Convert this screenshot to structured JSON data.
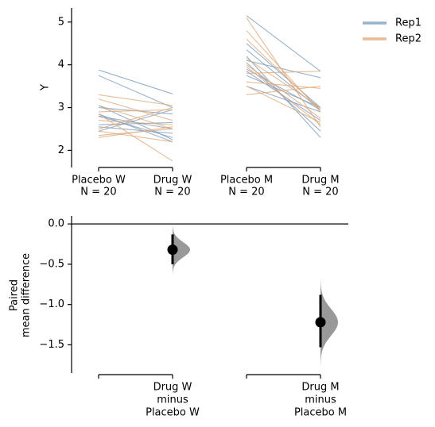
{
  "chart_data": [
    {
      "type": "slope",
      "ylabel": "Y",
      "categories": [
        [
          "Placebo W",
          "N = 20"
        ],
        [
          "Drug W",
          "N = 20"
        ],
        [
          "Placebo M",
          "N = 20"
        ],
        [
          "Drug M",
          "N = 20"
        ]
      ],
      "ylim": [
        1.6,
        5.33
      ],
      "yticks": [
        2,
        3,
        4,
        5
      ],
      "series": [
        {
          "name": "Rep1",
          "color": "#7f9fbf",
          "groups": [
            {
              "start": [
                3.88,
                3.75,
                3.05,
                2.85,
                2.8,
                2.6,
                2.55,
                2.45,
                2.8,
                3.0
              ],
              "end": [
                3.32,
                3.0,
                2.25,
                2.2,
                2.3,
                2.65,
                2.4,
                2.95,
                2.5,
                2.85
              ]
            },
            {
              "start": [
                5.15,
                4.5,
                4.35,
                4.2,
                4.05,
                3.9,
                3.85,
                3.75,
                3.5,
                4.1
              ],
              "end": [
                3.85,
                3.0,
                2.95,
                2.3,
                2.45,
                2.95,
                2.7,
                3.0,
                2.9,
                3.7
              ]
            }
          ]
        },
        {
          "name": "Rep2",
          "color": "#e0aa7c",
          "groups": [
            {
              "start": [
                3.3,
                3.05,
                2.9,
                2.85,
                2.7,
                2.45,
                2.35,
                2.3,
                2.5,
                3.2
              ],
              "end": [
                3.05,
                2.5,
                2.95,
                1.75,
                2.6,
                2.2,
                2.5,
                2.55,
                3.0,
                2.7
              ]
            },
            {
              "start": [
                5.1,
                4.8,
                4.15,
                4.0,
                3.95,
                3.8,
                3.6,
                3.3,
                3.5,
                4.6
              ],
              "end": [
                2.55,
                2.9,
                3.0,
                2.75,
                2.6,
                3.85,
                3.45,
                3.5,
                2.65,
                2.95
              ]
            }
          ]
        }
      ]
    },
    {
      "type": "estimation",
      "ylabel": [
        "Paired",
        "mean difference"
      ],
      "categories": [
        null,
        [
          "Drug W",
          "minus",
          "Placebo W"
        ],
        null,
        [
          "Drug M",
          "minus",
          "Placebo M"
        ]
      ],
      "values": [
        null,
        -0.32,
        null,
        -1.22
      ],
      "ci": [
        null,
        [
          -0.5,
          -0.13
        ],
        null,
        [
          -1.53,
          -0.88
        ]
      ],
      "ylim": [
        -1.85,
        0.1
      ],
      "yticks": [
        {
          "value": 0,
          "label": "0.0"
        },
        {
          "value": -0.5,
          "label": "−0.5"
        },
        {
          "value": -1.0,
          "label": "−1.0"
        },
        {
          "value": -1.5,
          "label": "−1.5"
        }
      ],
      "color": "#999999"
    }
  ]
}
